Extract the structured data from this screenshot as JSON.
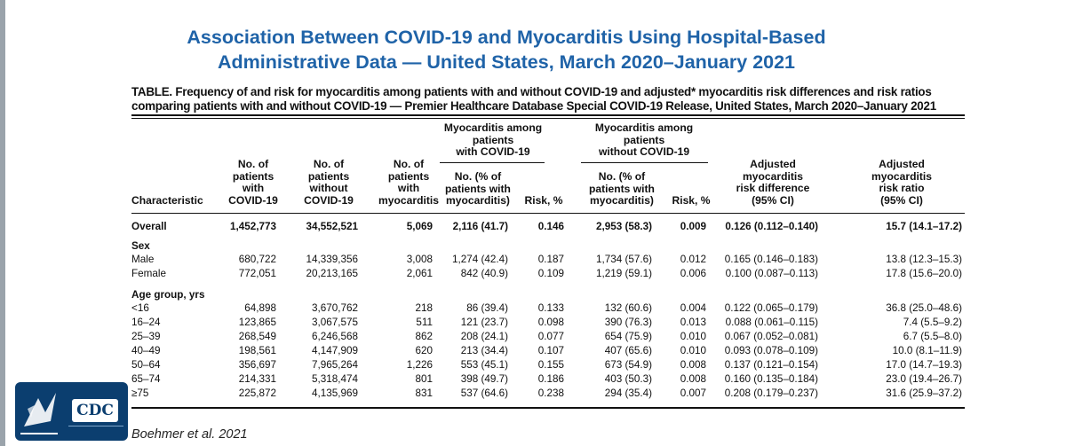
{
  "title_line1": "Association Between COVID-19 and Myocarditis Using Hospital-Based",
  "title_line2": "Administrative Data — United States, March 2020–January 2021",
  "caption_line1": "TABLE. Frequency of and risk for myocarditis among patients with and without COVID-19 and adjusted* myocarditis risk differences and risk ratios",
  "caption_line2": "comparing patients with and without COVID-19 — Premier Healthcare Database Special COVID-19 Release, United States, March 2020–January 2021",
  "headers": {
    "group_with": [
      "Myocarditis among",
      "patients",
      "with COVID-19"
    ],
    "group_without": [
      "Myocarditis among",
      "patients",
      "without COVID-19"
    ],
    "characteristic": "Characteristic",
    "n_with": [
      "No. of",
      "patients",
      "with",
      "COVID-19"
    ],
    "n_without": [
      "No. of",
      "patients",
      "without",
      "COVID-19"
    ],
    "n_myo": [
      "No. of",
      "patients",
      "with",
      "myocarditis"
    ],
    "pct_with": [
      "No. (% of",
      "patients with",
      "myocarditis)"
    ],
    "risk_with": "Risk, %",
    "pct_without": [
      "No. (% of",
      "patients with",
      "myocarditis)"
    ],
    "risk_without": "Risk, %",
    "adj_diff": [
      "Adjusted",
      "myocarditis",
      "risk difference",
      "(95% CI)"
    ],
    "adj_ratio": [
      "Adjusted",
      "myocarditis",
      "risk ratio",
      "(95% CI)"
    ]
  },
  "rows": [
    {
      "type": "data",
      "bold": true,
      "label": "Overall",
      "cells": [
        "1,452,773",
        "34,552,521",
        "5,069",
        "2,116 (41.7)",
        "0.146",
        "2,953 (58.3)",
        "0.009",
        "0.126 (0.112–0.140)",
        "15.7 (14.1–17.2)"
      ]
    },
    {
      "type": "group",
      "label": "Sex"
    },
    {
      "type": "data",
      "label": "Male",
      "cells": [
        "680,722",
        "14,339,356",
        "3,008",
        "1,274 (42.4)",
        "0.187",
        "1,734 (57.6)",
        "0.012",
        "0.165 (0.146–0.183)",
        "13.8 (12.3–15.3)"
      ]
    },
    {
      "type": "data",
      "label": "Female",
      "cells": [
        "772,051",
        "20,213,165",
        "2,061",
        "842 (40.9)",
        "0.109",
        "1,219 (59.1)",
        "0.006",
        "0.100 (0.087–0.113)",
        "17.8 (15.6–20.0)"
      ]
    },
    {
      "type": "group",
      "label": "Age group, yrs"
    },
    {
      "type": "data",
      "label": "<16",
      "cells": [
        "64,898",
        "3,670,762",
        "218",
        "86 (39.4)",
        "0.133",
        "132 (60.6)",
        "0.004",
        "0.122 (0.065–0.179)",
        "36.8 (25.0–48.6)"
      ]
    },
    {
      "type": "data",
      "label": "16–24",
      "cells": [
        "123,865",
        "3,067,575",
        "511",
        "121 (23.7)",
        "0.098",
        "390 (76.3)",
        "0.013",
        "0.088 (0.061–0.115)",
        "7.4 (5.5–9.2)"
      ]
    },
    {
      "type": "data",
      "label": "25–39",
      "cells": [
        "268,549",
        "6,246,568",
        "862",
        "208 (24.1)",
        "0.077",
        "654 (75.9)",
        "0.010",
        "0.067 (0.052–0.081)",
        "6.7 (5.5–8.0)"
      ]
    },
    {
      "type": "data",
      "label": "40–49",
      "cells": [
        "198,561",
        "4,147,909",
        "620",
        "213 (34.4)",
        "0.107",
        "407 (65.6)",
        "0.010",
        "0.093 (0.078–0.109)",
        "10.0 (8.1–11.9)"
      ]
    },
    {
      "type": "data",
      "label": "50–64",
      "cells": [
        "356,697",
        "7,965,264",
        "1,226",
        "553 (45.1)",
        "0.155",
        "673 (54.9)",
        "0.008",
        "0.137 (0.121–0.154)",
        "17.0 (14.7–19.3)"
      ]
    },
    {
      "type": "data",
      "label": "65–74",
      "cells": [
        "214,331",
        "5,318,474",
        "801",
        "398 (49.7)",
        "0.186",
        "403 (50.3)",
        "0.008",
        "0.160 (0.135–0.184)",
        "23.0 (19.4–26.7)"
      ]
    },
    {
      "type": "data",
      "label": "≥75",
      "cells": [
        "225,872",
        "4,135,969",
        "831",
        "537 (64.6)",
        "0.238",
        "294 (35.4)",
        "0.007",
        "0.208 (0.179–0.237)",
        "31.6 (25.9–37.2)"
      ]
    }
  ],
  "logo_text": "CDC",
  "citation": "Boehmer et al. 2021"
}
